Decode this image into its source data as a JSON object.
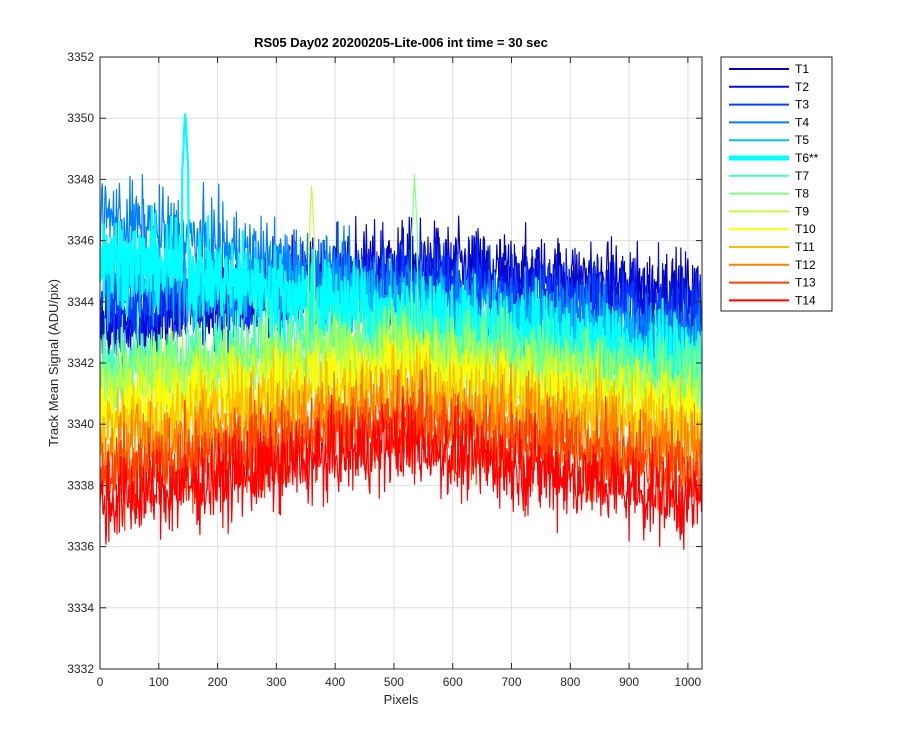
{
  "chart_data": {
    "type": "line",
    "title": "RS05 Day02 20200205-Lite-006 int time = 30 sec",
    "xlabel": "Pixels",
    "ylabel": "Track Mean Signal (ADU/pix)",
    "xlim": [
      0,
      1024
    ],
    "ylim": [
      3332,
      3352
    ],
    "xticks": [
      0,
      100,
      200,
      300,
      400,
      500,
      600,
      700,
      800,
      900,
      1000
    ],
    "yticks": [
      3332,
      3334,
      3336,
      3338,
      3340,
      3342,
      3344,
      3346,
      3348,
      3350,
      3352
    ],
    "grid": true,
    "legend_position": "outside-top-right",
    "num_points": 1024,
    "series": [
      {
        "name": "T1",
        "color": "#0000bf",
        "highlight": false,
        "mean_start": 3343.0,
        "mean_mid": 3345.3,
        "mean_end": 3344.2,
        "noise": 1.0
      },
      {
        "name": "T2",
        "color": "#0010df",
        "highlight": false,
        "mean_start": 3343.4,
        "mean_mid": 3345.0,
        "mean_end": 3343.8,
        "noise": 1.0
      },
      {
        "name": "T3",
        "color": "#0040ff",
        "highlight": false,
        "mean_start": 3344.2,
        "mean_mid": 3344.6,
        "mean_end": 3343.3,
        "noise": 1.0
      },
      {
        "name": "T4",
        "color": "#0080ff",
        "highlight": false,
        "mean_start": 3346.8,
        "mean_mid": 3344.2,
        "mean_end": 3342.8,
        "noise": 1.0
      },
      {
        "name": "T5",
        "color": "#00bfff",
        "highlight": false,
        "mean_start": 3345.0,
        "mean_mid": 3343.8,
        "mean_end": 3342.3,
        "noise": 1.0
      },
      {
        "name": "T6**",
        "color": "#00ffff",
        "highlight": true,
        "mean_start": 3345.6,
        "mean_mid": 3343.4,
        "mean_end": 3342.0,
        "noise": 1.0
      },
      {
        "name": "T7",
        "color": "#40ffbf",
        "highlight": false,
        "mean_start": 3342.0,
        "mean_mid": 3343.0,
        "mean_end": 3341.6,
        "noise": 1.0
      },
      {
        "name": "T8",
        "color": "#80ff80",
        "highlight": false,
        "mean_start": 3341.6,
        "mean_mid": 3342.6,
        "mean_end": 3341.2,
        "noise": 1.0
      },
      {
        "name": "T9",
        "color": "#bfff40",
        "highlight": false,
        "mean_start": 3341.0,
        "mean_mid": 3342.2,
        "mean_end": 3340.8,
        "noise": 1.0
      },
      {
        "name": "T10",
        "color": "#ffff00",
        "highlight": false,
        "mean_start": 3340.4,
        "mean_mid": 3341.8,
        "mean_end": 3340.3,
        "noise": 1.0
      },
      {
        "name": "T11",
        "color": "#ffbf00",
        "highlight": false,
        "mean_start": 3339.8,
        "mean_mid": 3341.2,
        "mean_end": 3339.7,
        "noise": 1.0
      },
      {
        "name": "T12",
        "color": "#ff8000",
        "highlight": false,
        "mean_start": 3339.0,
        "mean_mid": 3340.6,
        "mean_end": 3339.1,
        "noise": 1.0
      },
      {
        "name": "T13",
        "color": "#ff4000",
        "highlight": false,
        "mean_start": 3338.2,
        "mean_mid": 3340.0,
        "mean_end": 3338.4,
        "noise": 1.0
      },
      {
        "name": "T14",
        "color": "#ff0000",
        "highlight": false,
        "mean_start": 3337.4,
        "mean_mid": 3339.4,
        "mean_end": 3337.4,
        "noise": 1.0
      }
    ],
    "annotations": [
      {
        "series": "T6**",
        "x": 145,
        "y": 3350.4,
        "note": "peak"
      },
      {
        "series": "T9",
        "x": 360,
        "y": 3348.0,
        "note": "spike"
      },
      {
        "series": "T8",
        "x": 535,
        "y": 3348.2,
        "note": "spike"
      }
    ]
  }
}
